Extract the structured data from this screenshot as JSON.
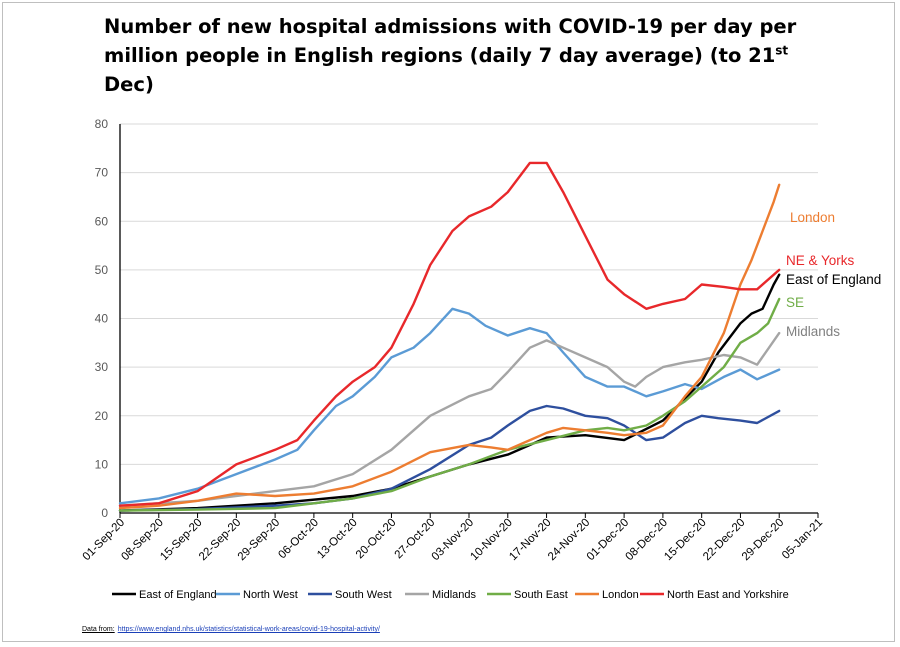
{
  "title": {
    "line1": "Number of new hospital admissions with COVID-19 per day per",
    "line2_prefix": "million people in English regions (daily 7 day average) (to 21",
    "line2_sup": "st",
    "line2_suffix": " Dec)"
  },
  "source": {
    "label": "Data from:",
    "url": "https://www.england.nhs.uk/statistics/statistical-work-areas/covid-19-hospital-activity/"
  },
  "chart_data": {
    "type": "line",
    "title": "Number of new hospital admissions with COVID-19 per day per million people in English regions (daily 7 day average) (to 21st Dec)",
    "xlabel": "",
    "ylabel": "",
    "ylim": [
      0,
      80
    ],
    "yticks": [
      0,
      10,
      20,
      30,
      40,
      50,
      60,
      70,
      80
    ],
    "x_axis_type": "date",
    "xlim": [
      "2020-09-01",
      "2021-01-05"
    ],
    "xticks": [
      "01-Sep-20",
      "08-Sep-20",
      "15-Sep-20",
      "22-Sep-20",
      "29-Sep-20",
      "06-Oct-20",
      "13-Oct-20",
      "20-Oct-20",
      "27-Oct-20",
      "03-Nov-20",
      "10-Nov-20",
      "17-Nov-20",
      "24-Nov-20",
      "01-Dec-20",
      "08-Dec-20",
      "15-Dec-20",
      "22-Dec-20",
      "29-Dec-20",
      "05-Jan-21"
    ],
    "grid": "horizontal",
    "legend_position": "bottom",
    "series": [
      {
        "name": "East of England",
        "color": "#000000",
        "end_label": "East of England",
        "end_label_color": "#000000",
        "points": [
          [
            "2020-09-01",
            0.5
          ],
          [
            "2020-09-15",
            1
          ],
          [
            "2020-09-29",
            2
          ],
          [
            "2020-10-13",
            3.5
          ],
          [
            "2020-10-20",
            5
          ],
          [
            "2020-10-27",
            7.5
          ],
          [
            "2020-11-03",
            10
          ],
          [
            "2020-11-10",
            12
          ],
          [
            "2020-11-17",
            15.5
          ],
          [
            "2020-11-24",
            16
          ],
          [
            "2020-12-01",
            15
          ],
          [
            "2020-12-08",
            19
          ],
          [
            "2020-12-15",
            27
          ],
          [
            "2020-12-18",
            33
          ],
          [
            "2020-12-22",
            39
          ],
          [
            "2020-12-24",
            41
          ],
          [
            "2020-12-26",
            42
          ],
          [
            "2020-12-28",
            47
          ],
          [
            "2020-12-29",
            49
          ]
        ]
      },
      {
        "name": "North West",
        "color": "#5b9bd5",
        "end_label": "",
        "end_label_color": "",
        "points": [
          [
            "2020-09-01",
            2
          ],
          [
            "2020-09-08",
            3
          ],
          [
            "2020-09-15",
            5
          ],
          [
            "2020-09-22",
            8
          ],
          [
            "2020-09-29",
            11
          ],
          [
            "2020-10-03",
            13
          ],
          [
            "2020-10-06",
            17
          ],
          [
            "2020-10-10",
            22
          ],
          [
            "2020-10-13",
            24
          ],
          [
            "2020-10-17",
            28
          ],
          [
            "2020-10-20",
            32
          ],
          [
            "2020-10-24",
            34
          ],
          [
            "2020-10-27",
            37
          ],
          [
            "2020-10-31",
            42
          ],
          [
            "2020-11-03",
            41
          ],
          [
            "2020-11-06",
            38.5
          ],
          [
            "2020-11-10",
            36.5
          ],
          [
            "2020-11-14",
            38
          ],
          [
            "2020-11-17",
            37
          ],
          [
            "2020-11-20",
            33
          ],
          [
            "2020-11-24",
            28
          ],
          [
            "2020-11-28",
            26
          ],
          [
            "2020-12-01",
            26
          ],
          [
            "2020-12-05",
            24
          ],
          [
            "2020-12-08",
            25
          ],
          [
            "2020-12-12",
            26.5
          ],
          [
            "2020-12-15",
            25.5
          ],
          [
            "2020-12-19",
            28
          ],
          [
            "2020-12-22",
            29.5
          ],
          [
            "2020-12-25",
            27.5
          ],
          [
            "2020-12-29",
            29.5
          ]
        ]
      },
      {
        "name": "South West",
        "color": "#2e4f9e",
        "end_label": "",
        "end_label_color": "",
        "points": [
          [
            "2020-09-01",
            0.5
          ],
          [
            "2020-09-15",
            0.8
          ],
          [
            "2020-09-29",
            1.5
          ],
          [
            "2020-10-06",
            2
          ],
          [
            "2020-10-13",
            3
          ],
          [
            "2020-10-20",
            5
          ],
          [
            "2020-10-27",
            9
          ],
          [
            "2020-11-03",
            14
          ],
          [
            "2020-11-07",
            15.5
          ],
          [
            "2020-11-10",
            18
          ],
          [
            "2020-11-14",
            21
          ],
          [
            "2020-11-17",
            22
          ],
          [
            "2020-11-20",
            21.5
          ],
          [
            "2020-11-24",
            20
          ],
          [
            "2020-11-28",
            19.5
          ],
          [
            "2020-12-01",
            18
          ],
          [
            "2020-12-05",
            15
          ],
          [
            "2020-12-08",
            15.5
          ],
          [
            "2020-12-12",
            18.5
          ],
          [
            "2020-12-15",
            20
          ],
          [
            "2020-12-18",
            19.5
          ],
          [
            "2020-12-22",
            19
          ],
          [
            "2020-12-25",
            18.5
          ],
          [
            "2020-12-29",
            21
          ]
        ]
      },
      {
        "name": "Midlands",
        "color": "#a5a5a5",
        "end_label": "Midlands",
        "end_label_color": "#808080",
        "points": [
          [
            "2020-09-01",
            1.5
          ],
          [
            "2020-09-15",
            2.5
          ],
          [
            "2020-09-29",
            4.5
          ],
          [
            "2020-10-06",
            5.5
          ],
          [
            "2020-10-13",
            8
          ],
          [
            "2020-10-20",
            13
          ],
          [
            "2020-10-27",
            20
          ],
          [
            "2020-11-03",
            24
          ],
          [
            "2020-11-07",
            25.5
          ],
          [
            "2020-11-10",
            29
          ],
          [
            "2020-11-14",
            34
          ],
          [
            "2020-11-17",
            35.5
          ],
          [
            "2020-11-20",
            34
          ],
          [
            "2020-11-24",
            32
          ],
          [
            "2020-11-28",
            30
          ],
          [
            "2020-12-01",
            27
          ],
          [
            "2020-12-03",
            26
          ],
          [
            "2020-12-05",
            28
          ],
          [
            "2020-12-08",
            30
          ],
          [
            "2020-12-12",
            31
          ],
          [
            "2020-12-15",
            31.5
          ],
          [
            "2020-12-19",
            32.5
          ],
          [
            "2020-12-22",
            32
          ],
          [
            "2020-12-25",
            30.5
          ],
          [
            "2020-12-29",
            37
          ]
        ]
      },
      {
        "name": "South East",
        "color": "#70ad47",
        "end_label": "SE",
        "end_label_color": "#70ad47",
        "points": [
          [
            "2020-09-01",
            0.5
          ],
          [
            "2020-09-15",
            0.7
          ],
          [
            "2020-09-29",
            1
          ],
          [
            "2020-10-06",
            2
          ],
          [
            "2020-10-13",
            3
          ],
          [
            "2020-10-20",
            4.5
          ],
          [
            "2020-10-27",
            7.5
          ],
          [
            "2020-11-03",
            10
          ],
          [
            "2020-11-10",
            13
          ],
          [
            "2020-11-17",
            15
          ],
          [
            "2020-11-24",
            17
          ],
          [
            "2020-11-28",
            17.5
          ],
          [
            "2020-12-01",
            17
          ],
          [
            "2020-12-05",
            18
          ],
          [
            "2020-12-08",
            20
          ],
          [
            "2020-12-12",
            23
          ],
          [
            "2020-12-15",
            26
          ],
          [
            "2020-12-19",
            30
          ],
          [
            "2020-12-22",
            35
          ],
          [
            "2020-12-25",
            37
          ],
          [
            "2020-12-27",
            39
          ],
          [
            "2020-12-29",
            44
          ]
        ]
      },
      {
        "name": "London",
        "color": "#ed7d31",
        "end_label": "London",
        "end_label_color": "#ed7d31",
        "points": [
          [
            "2020-09-01",
            1
          ],
          [
            "2020-09-08",
            1.5
          ],
          [
            "2020-09-15",
            2.5
          ],
          [
            "2020-09-22",
            4
          ],
          [
            "2020-09-29",
            3.5
          ],
          [
            "2020-10-06",
            4
          ],
          [
            "2020-10-13",
            5.5
          ],
          [
            "2020-10-20",
            8.5
          ],
          [
            "2020-10-27",
            12.5
          ],
          [
            "2020-11-03",
            14
          ],
          [
            "2020-11-07",
            13.5
          ],
          [
            "2020-11-10",
            13
          ],
          [
            "2020-11-14",
            15
          ],
          [
            "2020-11-17",
            16.5
          ],
          [
            "2020-11-20",
            17.5
          ],
          [
            "2020-11-24",
            17
          ],
          [
            "2020-11-28",
            16.5
          ],
          [
            "2020-12-01",
            16
          ],
          [
            "2020-12-05",
            16.5
          ],
          [
            "2020-12-08",
            18
          ],
          [
            "2020-12-12",
            24
          ],
          [
            "2020-12-15",
            28
          ],
          [
            "2020-12-19",
            37
          ],
          [
            "2020-12-22",
            47
          ],
          [
            "2020-12-24",
            52
          ],
          [
            "2020-12-26",
            58
          ],
          [
            "2020-12-28",
            64
          ],
          [
            "2020-12-29",
            67.5
          ]
        ]
      },
      {
        "name": "North East and Yorkshire",
        "color": "#e8282b",
        "end_label": "NE & Yorks",
        "end_label_color": "#e8282b",
        "points": [
          [
            "2020-09-01",
            1.5
          ],
          [
            "2020-09-08",
            2
          ],
          [
            "2020-09-15",
            4.5
          ],
          [
            "2020-09-22",
            10
          ],
          [
            "2020-09-29",
            13
          ],
          [
            "2020-10-03",
            15
          ],
          [
            "2020-10-06",
            19
          ],
          [
            "2020-10-10",
            24
          ],
          [
            "2020-10-13",
            27
          ],
          [
            "2020-10-17",
            30
          ],
          [
            "2020-10-20",
            34
          ],
          [
            "2020-10-24",
            43
          ],
          [
            "2020-10-27",
            51
          ],
          [
            "2020-10-31",
            58
          ],
          [
            "2020-11-03",
            61
          ],
          [
            "2020-11-07",
            63
          ],
          [
            "2020-11-10",
            66
          ],
          [
            "2020-11-14",
            72
          ],
          [
            "2020-11-17",
            72
          ],
          [
            "2020-11-20",
            66
          ],
          [
            "2020-11-24",
            57
          ],
          [
            "2020-11-28",
            48
          ],
          [
            "2020-12-01",
            45
          ],
          [
            "2020-12-05",
            42
          ],
          [
            "2020-12-08",
            43
          ],
          [
            "2020-12-12",
            44
          ],
          [
            "2020-12-15",
            47
          ],
          [
            "2020-12-19",
            46.5
          ],
          [
            "2020-12-22",
            46
          ],
          [
            "2020-12-25",
            46
          ],
          [
            "2020-12-29",
            50
          ]
        ]
      }
    ]
  }
}
